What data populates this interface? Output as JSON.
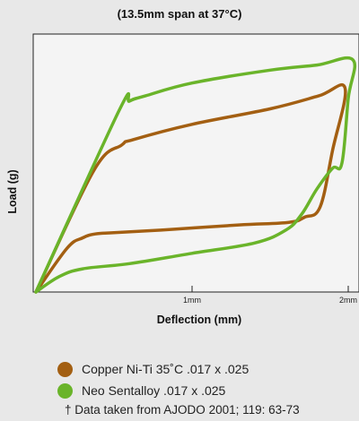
{
  "chart_data": {
    "type": "line",
    "title": "(13.5mm span at 37°C)",
    "xlabel": "Deflection (mm)",
    "ylabel": "Load (g)",
    "xlim": [
      0,
      2.05
    ],
    "ylim": [
      0,
      1.0
    ],
    "grid": false,
    "x_ticks": [
      {
        "value": 1,
        "label": "1mm"
      },
      {
        "value": 2,
        "label": "2mm"
      }
    ],
    "series": [
      {
        "name": "Copper Ni-Ti 35˚C .017 x .025",
        "color": "#a35f12",
        "points": [
          [
            0,
            0
          ],
          [
            0.37,
            0.47
          ],
          [
            0.55,
            0.57
          ],
          [
            0.62,
            0.59
          ],
          [
            1.0,
            0.65
          ],
          [
            1.5,
            0.71
          ],
          [
            1.81,
            0.76
          ],
          [
            1.98,
            0.79
          ],
          [
            1.9,
            0.55
          ],
          [
            1.82,
            0.33
          ],
          [
            1.72,
            0.29
          ],
          [
            1.62,
            0.27
          ],
          [
            1.3,
            0.26
          ],
          [
            0.8,
            0.24
          ],
          [
            0.5,
            0.23
          ],
          [
            0.38,
            0.225
          ],
          [
            0.3,
            0.21
          ],
          [
            0.2,
            0.17
          ],
          [
            0,
            0
          ]
        ]
      },
      {
        "name": "Neo Sentalloy .017 x .025",
        "color": "#6ab42a",
        "points": [
          [
            0,
            0
          ],
          [
            0.53,
            0.7
          ],
          [
            0.6,
            0.74
          ],
          [
            0.7,
            0.76
          ],
          [
            1.0,
            0.81
          ],
          [
            1.5,
            0.86
          ],
          [
            1.8,
            0.88
          ],
          [
            2.03,
            0.9
          ],
          [
            2.0,
            0.75
          ],
          [
            1.96,
            0.5
          ],
          [
            1.9,
            0.48
          ],
          [
            1.8,
            0.4
          ],
          [
            1.7,
            0.3
          ],
          [
            1.6,
            0.24
          ],
          [
            1.4,
            0.19
          ],
          [
            1.0,
            0.15
          ],
          [
            0.6,
            0.11
          ],
          [
            0.3,
            0.09
          ],
          [
            0.15,
            0.06
          ],
          [
            0,
            0
          ]
        ]
      }
    ]
  },
  "legend": {
    "items": [
      {
        "label": "Copper Ni-Ti 35˚C .017 x .025",
        "color": "#a35f12"
      },
      {
        "label": "Neo Sentalloy .017 x .025",
        "color": "#6ab42a"
      }
    ]
  },
  "footnote": "† Data taken from AJODO 2001; 119: 63-73"
}
